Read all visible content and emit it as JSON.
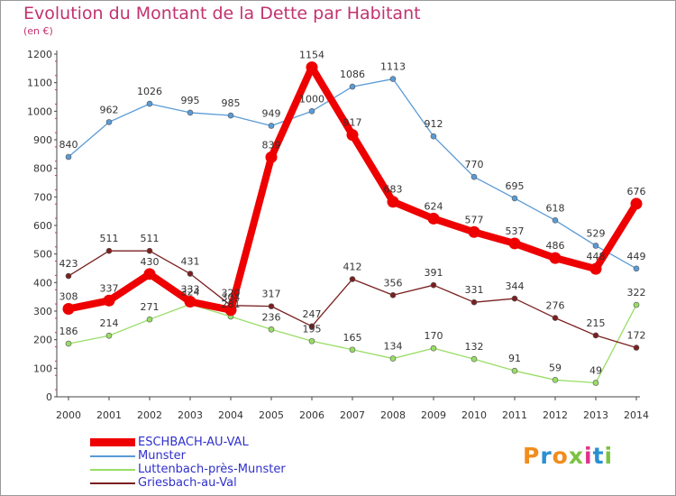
{
  "title": "Evolution du Montant de la Dette par Habitant",
  "subtitle": "(en €)",
  "logo": {
    "text": "Proxiti",
    "colors": [
      "#f28c1c",
      "#2b8fd1",
      "#f28c1c",
      "#7cc242",
      "#e0338a",
      "#2b8fd1",
      "#7cc242"
    ]
  },
  "chart_data": {
    "type": "line",
    "x": [
      "2000",
      "2001",
      "2002",
      "2003",
      "2004",
      "2005",
      "2006",
      "2007",
      "2008",
      "2009",
      "2010",
      "2011",
      "2012",
      "2013",
      "2014"
    ],
    "ylim": [
      0,
      1200
    ],
    "yticks": [
      0,
      100,
      200,
      300,
      400,
      500,
      600,
      700,
      800,
      900,
      1000,
      1100,
      1200
    ],
    "grid": false,
    "legend_position": "bottom-left",
    "series": [
      {
        "name": "ESCHBACH-AU-VAL",
        "color": "#ee0000",
        "values": [
          308,
          337,
          430,
          333,
          304,
          839,
          1154,
          917,
          683,
          624,
          577,
          537,
          486,
          448,
          676
        ],
        "labels": [
          "308",
          "337",
          "430",
          "333",
          "304",
          "839",
          "1154",
          "917",
          "683",
          "624",
          "577",
          "537",
          "486",
          "448",
          "676"
        ],
        "bold": true
      },
      {
        "name": "Munster",
        "color": "#5b9bd5",
        "values": [
          840,
          962,
          1026,
          995,
          985,
          949,
          1000,
          1086,
          1113,
          912,
          770,
          695,
          618,
          529,
          449
        ],
        "labels": [
          "840",
          "962",
          "1026",
          "995",
          "985",
          "949",
          "1000",
          "1086",
          "1113",
          "912",
          "770",
          "695",
          "618",
          "529",
          "449"
        ]
      },
      {
        "name": "Luttenbach-près-Munster",
        "color": "#99dd66",
        "values": [
          186,
          214,
          271,
          324,
          281,
          236,
          195,
          165,
          134,
          170,
          132,
          91,
          59,
          49,
          322
        ],
        "labels": [
          "186",
          "214",
          "271",
          "324",
          "281",
          "236",
          "195",
          "165",
          "134",
          "170",
          "132",
          "91",
          "59",
          "49",
          "322"
        ]
      },
      {
        "name": "Griesbach-au-Val",
        "color": "#7a2020",
        "values": [
          423,
          511,
          511,
          431,
          320,
          317,
          247,
          412,
          356,
          391,
          331,
          344,
          276,
          215,
          172
        ],
        "labels": [
          "423",
          "511",
          "511",
          "431",
          "320",
          "317",
          "247",
          "412",
          "356",
          "391",
          "331",
          "344",
          "276",
          "215",
          "172"
        ]
      }
    ]
  }
}
